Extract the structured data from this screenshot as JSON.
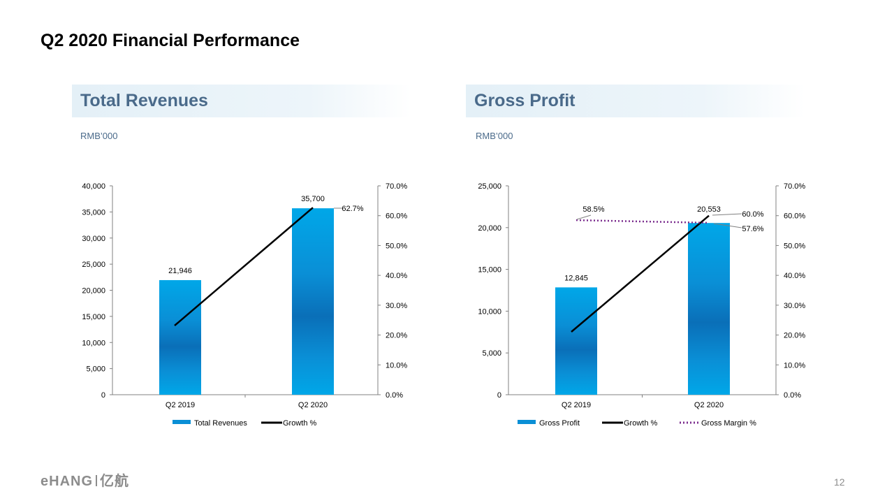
{
  "slide": {
    "title": "Q2 2020 Financial Performance",
    "page_number": "12",
    "logo_text": "eHANG",
    "logo_text_cn": "亿航"
  },
  "panels": [
    {
      "header": "Total Revenues",
      "unit": "RMB’000"
    },
    {
      "header": "Gross Profit",
      "unit": "RMB’000"
    }
  ],
  "colors": {
    "bar_top": "#00a7e8",
    "bar_mid": "#0a6fb8",
    "bar_bottom": "#00a7e8",
    "growth_line": "#000000",
    "gross_margin_line": "#7b2d8e",
    "header_text": "#4a6a8a"
  },
  "chart_data": [
    {
      "type": "bar",
      "categories": [
        "Q2 2019",
        "Q2 2020"
      ],
      "series": [
        {
          "name": "Total Revenues",
          "kind": "bar",
          "axis": "left",
          "values": [
            21946,
            35700
          ],
          "labels": [
            "21,946",
            "35,700"
          ]
        },
        {
          "name": "Growth %",
          "kind": "line",
          "axis": "right",
          "values": [
            null,
            62.7
          ],
          "labels": [
            null,
            "62.7%"
          ]
        }
      ],
      "left_axis": {
        "min": 0,
        "max": 40000,
        "ticks": [
          "0",
          "5,000",
          "10,000",
          "15,000",
          "20,000",
          "25,000",
          "30,000",
          "35,000",
          "40,000"
        ]
      },
      "right_axis": {
        "min": 0,
        "max": 70,
        "ticks": [
          "0.0%",
          "10.0%",
          "20.0%",
          "30.0%",
          "40.0%",
          "50.0%",
          "60.0%",
          "70.0%"
        ]
      },
      "legend": [
        "Total Revenues",
        "Growth %"
      ],
      "legend_position": "bottom"
    },
    {
      "type": "bar",
      "categories": [
        "Q2 2019",
        "Q2 2020"
      ],
      "series": [
        {
          "name": "Gross Profit",
          "kind": "bar",
          "axis": "left",
          "values": [
            12845,
            20553
          ],
          "labels": [
            "12,845",
            "20,553"
          ]
        },
        {
          "name": "Growth %",
          "kind": "line",
          "axis": "right",
          "values": [
            null,
            60.0
          ],
          "labels": [
            null,
            "60.0%"
          ]
        },
        {
          "name": "Gross Margin %",
          "kind": "dotted-line",
          "axis": "right",
          "values": [
            58.5,
            57.6
          ],
          "labels": [
            "58.5%",
            "57.6%"
          ]
        }
      ],
      "left_axis": {
        "min": 0,
        "max": 25000,
        "ticks": [
          "0",
          "5,000",
          "10,000",
          "15,000",
          "20,000",
          "25,000"
        ]
      },
      "right_axis": {
        "min": 0,
        "max": 70,
        "ticks": [
          "0.0%",
          "10.0%",
          "20.0%",
          "30.0%",
          "40.0%",
          "50.0%",
          "60.0%",
          "70.0%"
        ]
      },
      "legend": [
        "Gross Profit",
        "Growth %",
        "Gross Margin %"
      ],
      "legend_position": "bottom"
    }
  ]
}
